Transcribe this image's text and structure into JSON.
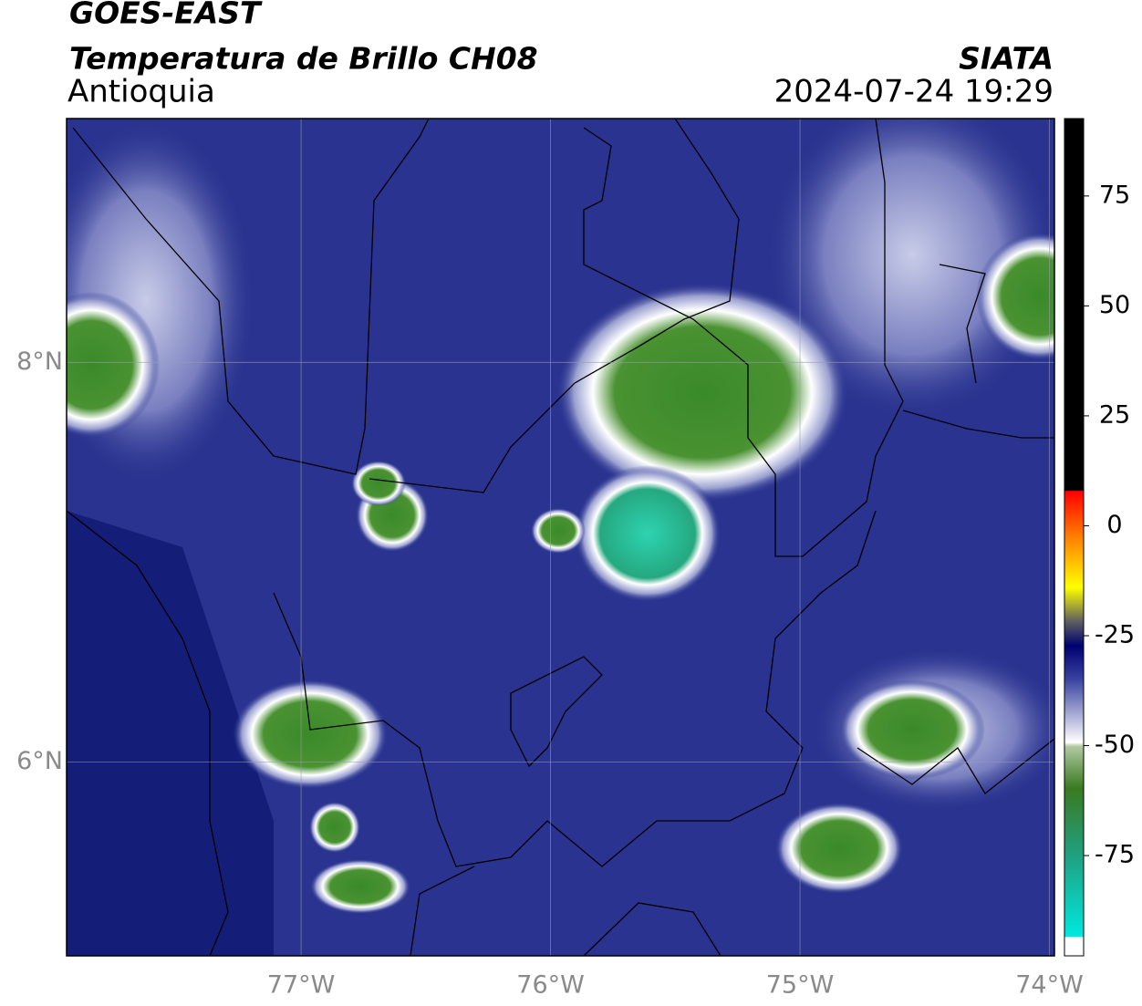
{
  "header": {
    "title": "GOES-EAST",
    "subtitle": "Temperatura de Brillo CH08",
    "region": "Antioquia",
    "source": "SIATA",
    "datetime": "2024-07-24 19:29"
  },
  "map": {
    "xlim": [
      -77.94,
      -73.98
    ],
    "ylim": [
      5.03,
      9.22
    ],
    "xticks": [
      {
        "value": -77,
        "label": "77°W"
      },
      {
        "value": -76,
        "label": "76°W"
      },
      {
        "value": -75,
        "label": "75°W"
      },
      {
        "value": -74,
        "label": "74°W"
      }
    ],
    "yticks": [
      {
        "value": 8,
        "label": "8°N"
      },
      {
        "value": 6,
        "label": "6°N"
      }
    ]
  },
  "colorbar": {
    "lim": [
      -97.8,
      92.6
    ],
    "ticks": [
      75,
      50,
      25,
      0,
      -25,
      -50,
      -75
    ]
  }
}
